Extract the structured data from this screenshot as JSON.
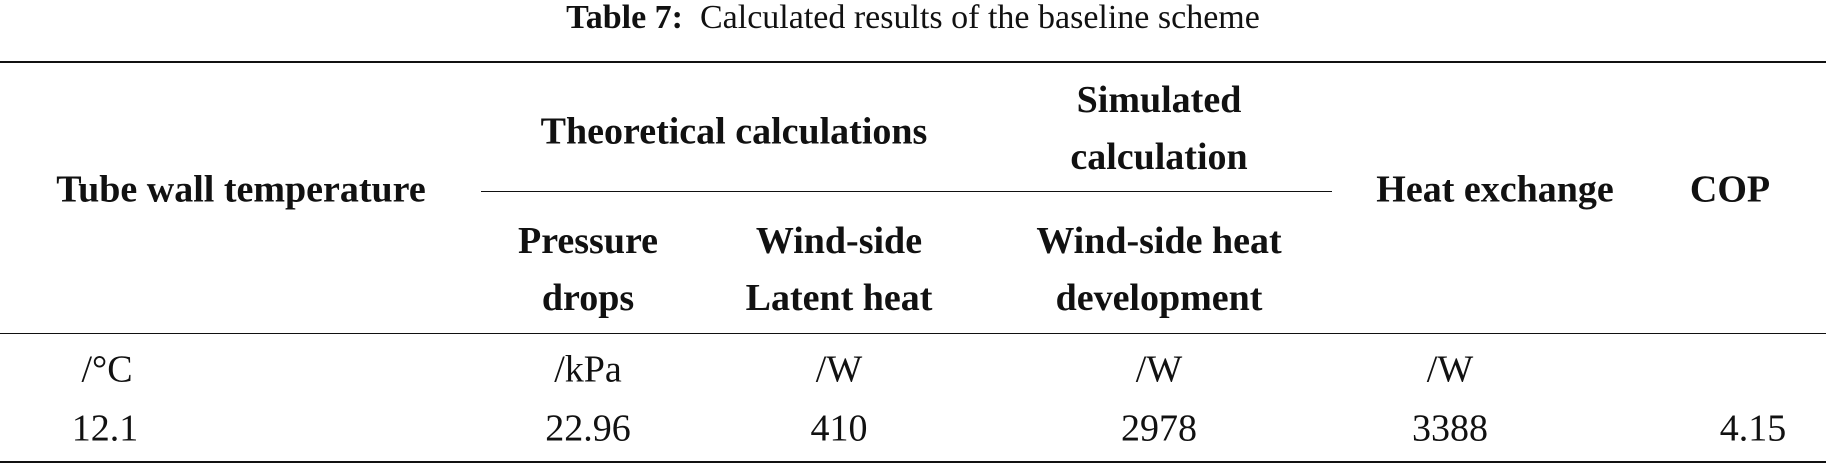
{
  "caption": {
    "label": "Table 7:",
    "text": "Calculated results of the baseline scheme"
  },
  "table": {
    "header_top": [
      "Tube wall temperature",
      "Theoretical calculations",
      "Simulated calculation",
      "Heat exchange",
      "COP"
    ],
    "header_sub": [
      "Pressure drops",
      "Wind-side Latent heat",
      "Wind-side heat development"
    ],
    "units": [
      "/°C",
      "/kPa",
      "/W",
      "/W",
      "/W"
    ],
    "rows": [
      [
        12.1,
        22.96,
        410,
        2978,
        3388,
        4.15
      ]
    ]
  }
}
